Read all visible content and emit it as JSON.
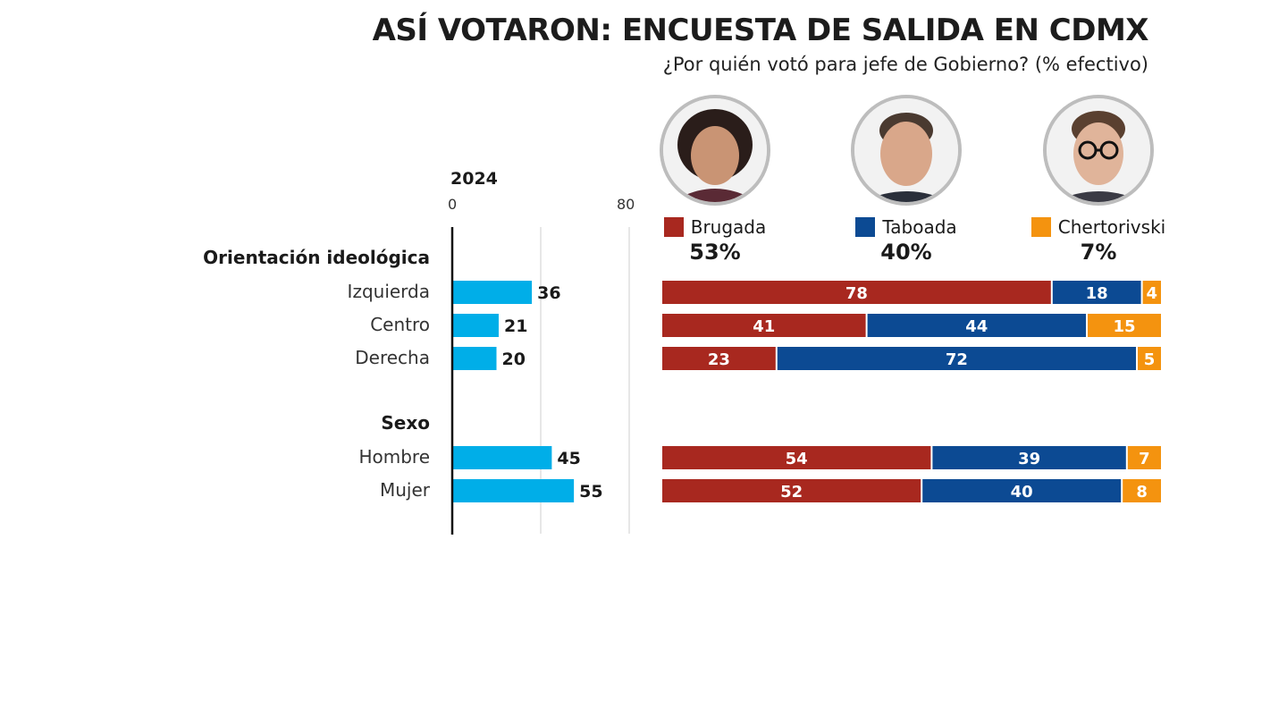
{
  "title": "ASÍ VOTARON: ENCUESTA DE SALIDA EN CDMX",
  "subtitle": "¿Por quién votó para jefe de Gobierno? (% efectivo)",
  "colors": {
    "brugada": "#a8281f",
    "taboada": "#0c4a93",
    "chertorivski": "#f4930f",
    "share": "#00aee8"
  },
  "chart_data": [
    {
      "type": "bar",
      "title": "2024",
      "xlim": [
        0,
        80
      ],
      "tick_labels": [
        "0",
        "80"
      ],
      "sections": [
        "Orientación ideológica",
        "Sexo"
      ],
      "categories": [
        "Izquierda",
        "Centro",
        "Derecha",
        "Hombre",
        "Mujer"
      ],
      "values": [
        36,
        21,
        20,
        45,
        55
      ]
    },
    {
      "type": "bar",
      "stacked": true,
      "categories": [
        "Izquierda",
        "Centro",
        "Derecha",
        "Hombre",
        "Mujer"
      ],
      "series": [
        {
          "name": "Brugada",
          "total": "53%",
          "values": [
            78,
            41,
            23,
            54,
            52
          ]
        },
        {
          "name": "Taboada",
          "total": "40%",
          "values": [
            18,
            44,
            72,
            39,
            40
          ]
        },
        {
          "name": "Chertorivski",
          "total": "7%",
          "values": [
            4,
            15,
            5,
            7,
            8
          ]
        }
      ]
    }
  ]
}
